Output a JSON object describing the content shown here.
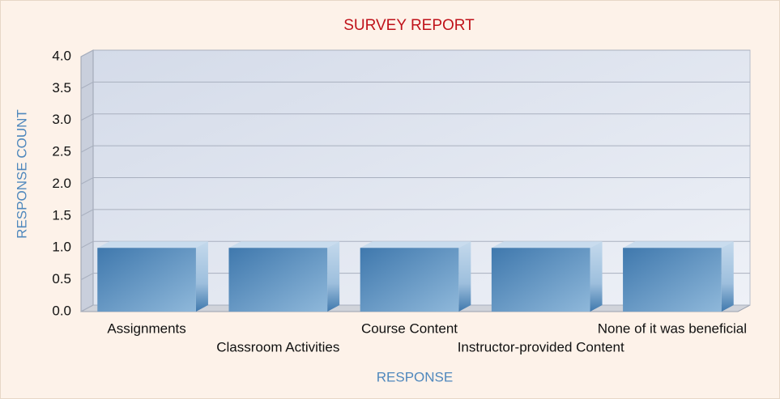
{
  "chart_data": {
    "type": "bar3d",
    "title": "SURVEY REPORT",
    "x_label": "RESPONSE",
    "y_label": "RESPONSE COUNT",
    "categories": [
      "Assignments",
      "Classroom Activities",
      "Course Content",
      "Instructor-provided Content",
      "None of it was beneficial"
    ],
    "values": [
      1,
      1,
      1,
      1,
      1
    ],
    "color": "#4a80b5",
    "ylim": [
      0,
      4
    ],
    "yticks": [
      {
        "value": 0,
        "label": "0.0"
      },
      0.5,
      {
        "value": 1,
        "label": "1.0"
      },
      1.5,
      {
        "value": 2,
        "label": "2.0"
      },
      2.5,
      {
        "value": 3,
        "label": "3.0"
      },
      3.5,
      {
        "value": 4,
        "label": "4.0"
      }
    ],
    "grid": true
  }
}
